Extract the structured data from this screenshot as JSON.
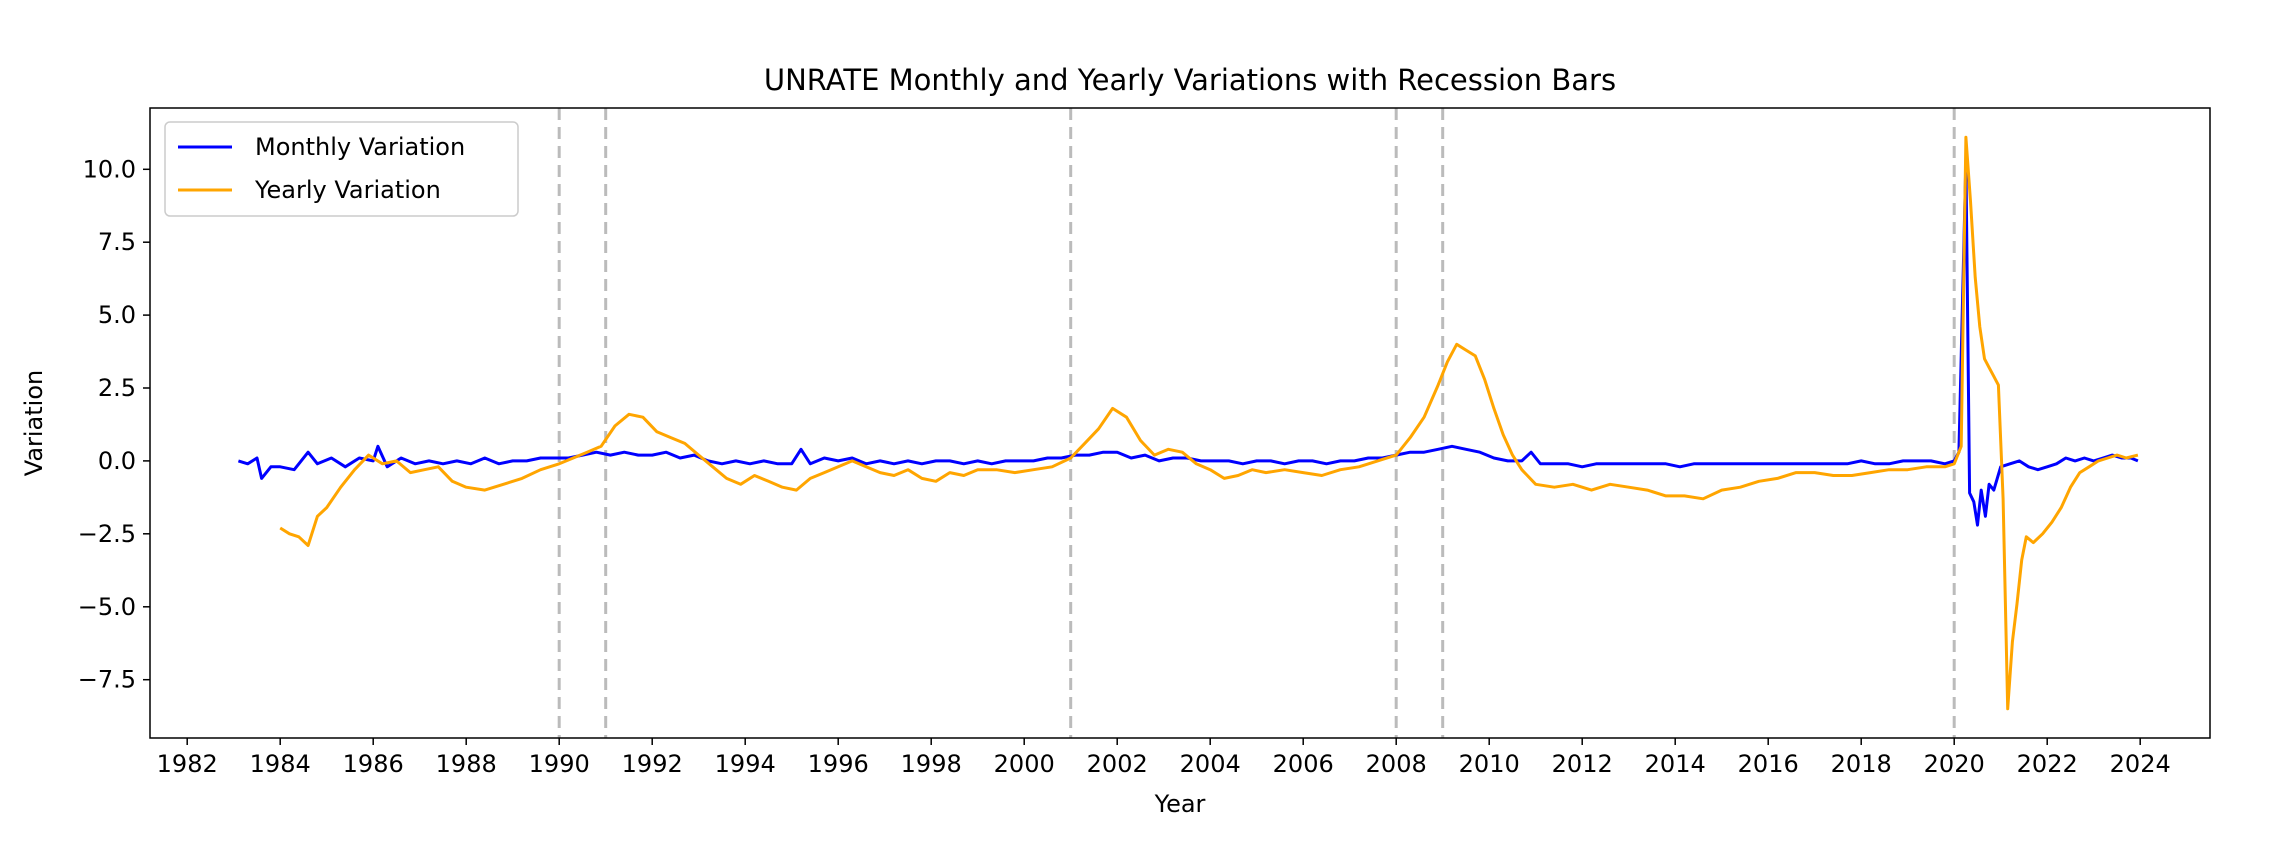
{
  "chart_data": {
    "type": "line",
    "title": "UNRATE Monthly and Yearly Variations with Recession Bars",
    "xlabel": "Year",
    "ylabel": "Variation",
    "xlim": [
      1981.2,
      2025.5
    ],
    "ylim": [
      -9.5,
      12.1
    ],
    "x_ticks": [
      1982,
      1984,
      1986,
      1988,
      1990,
      1992,
      1994,
      1996,
      1998,
      2000,
      2002,
      2004,
      2006,
      2008,
      2010,
      2012,
      2014,
      2016,
      2018,
      2020,
      2022,
      2024
    ],
    "x_tick_labels": [
      "1982",
      "1984",
      "1986",
      "1988",
      "1990",
      "1992",
      "1994",
      "1996",
      "1998",
      "2000",
      "2002",
      "2004",
      "2006",
      "2008",
      "2010",
      "2012",
      "2014",
      "2016",
      "2018",
      "2020",
      "2022",
      "2024"
    ],
    "y_ticks": [
      -7.5,
      -5.0,
      -2.5,
      0.0,
      2.5,
      5.0,
      7.5,
      10.0
    ],
    "y_tick_labels": [
      "−7.5",
      "−5.0",
      "−2.5",
      "0.0",
      "2.5",
      "5.0",
      "7.5",
      "10.0"
    ],
    "recession_lines": [
      1990.0,
      1991.0,
      2001.0,
      2008.0,
      2009.0,
      2020.0
    ],
    "legend": {
      "position": "top-left"
    },
    "series": [
      {
        "name": "Monthly Variation",
        "color": "#0000ff",
        "x": [
          1983.1,
          1983.3,
          1983.5,
          1983.6,
          1983.8,
          1984.0,
          1984.3,
          1984.6,
          1984.8,
          1985.1,
          1985.4,
          1985.7,
          1986.0,
          1986.1,
          1986.3,
          1986.6,
          1986.9,
          1987.2,
          1987.5,
          1987.8,
          1988.1,
          1988.4,
          1988.7,
          1989.0,
          1989.3,
          1989.6,
          1989.9,
          1990.2,
          1990.5,
          1990.8,
          1991.1,
          1991.4,
          1991.7,
          1992.0,
          1992.3,
          1992.6,
          1992.9,
          1993.2,
          1993.5,
          1993.8,
          1994.1,
          1994.4,
          1994.7,
          1995.0,
          1995.2,
          1995.4,
          1995.7,
          1996.0,
          1996.3,
          1996.6,
          1996.9,
          1997.2,
          1997.5,
          1997.8,
          1998.1,
          1998.4,
          1998.7,
          1999.0,
          1999.3,
          1999.6,
          1999.9,
          2000.2,
          2000.5,
          2000.8,
          2001.1,
          2001.4,
          2001.7,
          2002.0,
          2002.3,
          2002.6,
          2002.9,
          2003.2,
          2003.5,
          2003.8,
          2004.1,
          2004.4,
          2004.7,
          2005.0,
          2005.3,
          2005.6,
          2005.9,
          2006.2,
          2006.5,
          2006.8,
          2007.1,
          2007.4,
          2007.7,
          2008.0,
          2008.3,
          2008.6,
          2008.9,
          2009.2,
          2009.5,
          2009.8,
          2010.1,
          2010.4,
          2010.7,
          2010.9,
          2011.1,
          2011.4,
          2011.7,
          2012.0,
          2012.3,
          2012.6,
          2012.9,
          2013.2,
          2013.5,
          2013.8,
          2014.1,
          2014.4,
          2014.7,
          2015.0,
          2015.3,
          2015.6,
          2015.9,
          2016.2,
          2016.5,
          2016.8,
          2017.1,
          2017.4,
          2017.7,
          2018.0,
          2018.3,
          2018.6,
          2018.9,
          2019.2,
          2019.5,
          2019.8,
          2020.0,
          2020.1,
          2020.25,
          2020.33,
          2020.42,
          2020.5,
          2020.58,
          2020.67,
          2020.75,
          2020.85,
          2021.0,
          2021.2,
          2021.4,
          2021.6,
          2021.8,
          2022.0,
          2022.2,
          2022.4,
          2022.6,
          2022.8,
          2023.0,
          2023.2,
          2023.4,
          2023.6,
          2023.8,
          2023.95
        ],
        "values": [
          0.0,
          -0.1,
          0.1,
          -0.6,
          -0.2,
          -0.2,
          -0.3,
          0.3,
          -0.1,
          0.1,
          -0.2,
          0.1,
          0.0,
          0.5,
          -0.2,
          0.1,
          -0.1,
          0.0,
          -0.1,
          0.0,
          -0.1,
          0.1,
          -0.1,
          0.0,
          0.0,
          0.1,
          0.1,
          0.1,
          0.2,
          0.3,
          0.2,
          0.3,
          0.2,
          0.2,
          0.3,
          0.1,
          0.2,
          0.0,
          -0.1,
          0.0,
          -0.1,
          0.0,
          -0.1,
          -0.1,
          0.4,
          -0.1,
          0.1,
          0.0,
          0.1,
          -0.1,
          0.0,
          -0.1,
          0.0,
          -0.1,
          0.0,
          0.0,
          -0.1,
          0.0,
          -0.1,
          0.0,
          0.0,
          0.0,
          0.1,
          0.1,
          0.2,
          0.2,
          0.3,
          0.3,
          0.1,
          0.2,
          0.0,
          0.1,
          0.1,
          0.0,
          0.0,
          0.0,
          -0.1,
          0.0,
          0.0,
          -0.1,
          0.0,
          0.0,
          -0.1,
          0.0,
          0.0,
          0.1,
          0.1,
          0.2,
          0.3,
          0.3,
          0.4,
          0.5,
          0.4,
          0.3,
          0.1,
          0.0,
          0.0,
          0.3,
          -0.1,
          -0.1,
          -0.1,
          -0.2,
          -0.1,
          -0.1,
          -0.1,
          -0.1,
          -0.1,
          -0.1,
          -0.2,
          -0.1,
          -0.1,
          -0.1,
          -0.1,
          -0.1,
          -0.1,
          -0.1,
          -0.1,
          -0.1,
          -0.1,
          -0.1,
          -0.1,
          0.0,
          -0.1,
          -0.1,
          0.0,
          0.0,
          0.0,
          -0.1,
          0.0,
          0.3,
          10.3,
          -1.1,
          -1.4,
          -2.2,
          -1.0,
          -1.9,
          -0.8,
          -1.0,
          -0.2,
          -0.1,
          0.0,
          -0.2,
          -0.3,
          -0.2,
          -0.1,
          0.1,
          0.0,
          0.1,
          0.0,
          0.1,
          0.2,
          0.1,
          0.1,
          0.0
        ]
      },
      {
        "name": "Yearly Variation",
        "color": "#ffa500",
        "x": [
          1984.0,
          1984.2,
          1984.4,
          1984.6,
          1984.8,
          1985.0,
          1985.3,
          1985.6,
          1985.9,
          1986.2,
          1986.5,
          1986.8,
          1987.1,
          1987.4,
          1987.7,
          1988.0,
          1988.4,
          1988.8,
          1989.2,
          1989.6,
          1990.0,
          1990.3,
          1990.6,
          1990.9,
          1991.2,
          1991.5,
          1991.8,
          1992.1,
          1992.4,
          1992.7,
          1993.0,
          1993.3,
          1993.6,
          1993.9,
          1994.2,
          1994.5,
          1994.8,
          1995.1,
          1995.4,
          1995.7,
          1996.0,
          1996.3,
          1996.6,
          1996.9,
          1997.2,
          1997.5,
          1997.8,
          1998.1,
          1998.4,
          1998.7,
          1999.0,
          1999.4,
          1999.8,
          2000.2,
          2000.6,
          2001.0,
          2001.3,
          2001.6,
          2001.9,
          2002.2,
          2002.5,
          2002.8,
          2003.1,
          2003.4,
          2003.7,
          2004.0,
          2004.3,
          2004.6,
          2004.9,
          2005.2,
          2005.6,
          2006.0,
          2006.4,
          2006.8,
          2007.2,
          2007.6,
          2008.0,
          2008.3,
          2008.6,
          2008.9,
          2009.1,
          2009.3,
          2009.5,
          2009.7,
          2009.9,
          2010.1,
          2010.3,
          2010.5,
          2010.7,
          2011.0,
          2011.4,
          2011.8,
          2012.2,
          2012.6,
          2013.0,
          2013.4,
          2013.8,
          2014.2,
          2014.6,
          2015.0,
          2015.4,
          2015.8,
          2016.2,
          2016.6,
          2017.0,
          2017.4,
          2017.8,
          2018.2,
          2018.6,
          2019.0,
          2019.4,
          2019.8,
          2020.0,
          2020.15,
          2020.25,
          2020.35,
          2020.45,
          2020.55,
          2020.65,
          2020.75,
          2020.85,
          2020.95,
          2021.05,
          2021.15,
          2021.25,
          2021.35,
          2021.45,
          2021.55,
          2021.7,
          2021.9,
          2022.1,
          2022.3,
          2022.5,
          2022.7,
          2022.9,
          2023.1,
          2023.3,
          2023.5,
          2023.7,
          2023.95
        ],
        "values": [
          -2.3,
          -2.5,
          -2.6,
          -2.9,
          -1.9,
          -1.6,
          -0.9,
          -0.3,
          0.2,
          -0.1,
          0.0,
          -0.4,
          -0.3,
          -0.2,
          -0.7,
          -0.9,
          -1.0,
          -0.8,
          -0.6,
          -0.3,
          -0.1,
          0.1,
          0.3,
          0.5,
          1.2,
          1.6,
          1.5,
          1.0,
          0.8,
          0.6,
          0.2,
          -0.2,
          -0.6,
          -0.8,
          -0.5,
          -0.7,
          -0.9,
          -1.0,
          -0.6,
          -0.4,
          -0.2,
          0.0,
          -0.2,
          -0.4,
          -0.5,
          -0.3,
          -0.6,
          -0.7,
          -0.4,
          -0.5,
          -0.3,
          -0.3,
          -0.4,
          -0.3,
          -0.2,
          0.1,
          0.6,
          1.1,
          1.8,
          1.5,
          0.7,
          0.2,
          0.4,
          0.3,
          -0.1,
          -0.3,
          -0.6,
          -0.5,
          -0.3,
          -0.4,
          -0.3,
          -0.4,
          -0.5,
          -0.3,
          -0.2,
          0.0,
          0.2,
          0.8,
          1.5,
          2.6,
          3.4,
          4.0,
          3.8,
          3.6,
          2.8,
          1.8,
          0.9,
          0.2,
          -0.3,
          -0.8,
          -0.9,
          -0.8,
          -1.0,
          -0.8,
          -0.9,
          -1.0,
          -1.2,
          -1.2,
          -1.3,
          -1.0,
          -0.9,
          -0.7,
          -0.6,
          -0.4,
          -0.4,
          -0.5,
          -0.5,
          -0.4,
          -0.3,
          -0.3,
          -0.2,
          -0.2,
          -0.1,
          0.5,
          11.1,
          8.9,
          6.3,
          4.6,
          3.5,
          3.2,
          2.9,
          2.6,
          -1.3,
          -8.5,
          -6.2,
          -4.9,
          -3.4,
          -2.6,
          -2.8,
          -2.5,
          -2.1,
          -1.6,
          -0.9,
          -0.4,
          -0.2,
          0.0,
          0.1,
          0.2,
          0.1,
          0.2
        ]
      }
    ]
  }
}
